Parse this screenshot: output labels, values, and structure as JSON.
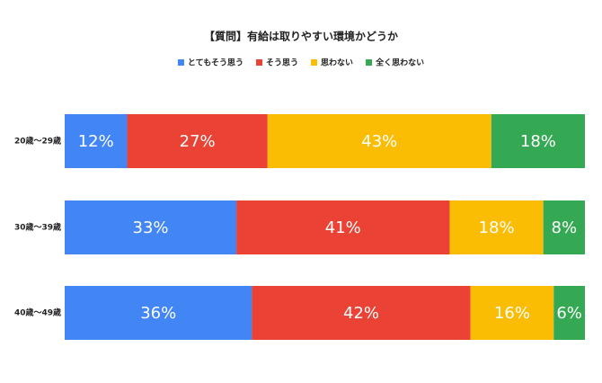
{
  "chart_data": {
    "type": "stacked-bar-horizontal",
    "title": "【質問】有給は取りやすい環境かどうか",
    "categories": [
      "20歳～29歳",
      "30歳～39歳",
      "40歳～49歳"
    ],
    "xlim": [
      0,
      100
    ],
    "series": [
      {
        "name": "とてもそう思う",
        "color": "#4285f4",
        "values": [
          12,
          33,
          36
        ],
        "value_labels": [
          "12%",
          "33%",
          "36%"
        ]
      },
      {
        "name": "そう思う",
        "color": "#ea4335",
        "values": [
          27,
          41,
          42
        ],
        "value_labels": [
          "27%",
          "41%",
          "42%"
        ]
      },
      {
        "name": "思わない",
        "color": "#fbbc04",
        "values": [
          43,
          18,
          16
        ],
        "value_labels": [
          "43%",
          "18%",
          "16%"
        ]
      },
      {
        "name": "全く思わない",
        "color": "#34a853",
        "values": [
          18,
          8,
          6
        ],
        "value_labels": [
          "18%",
          "8%",
          "6%"
        ]
      }
    ]
  }
}
